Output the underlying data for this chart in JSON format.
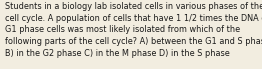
{
  "lines": [
    "Students in a biology lab isolated cells in various phases of the",
    "cell cycle. A population of cells that have 1 1/2 times the DNA of",
    "G1 phase cells was most likely isolated from which of the",
    "following parts of the cell cycle? A) between the G1 and S phases",
    "B) in the G2 phase C) in the M phase D) in the S phase"
  ],
  "background_color": "#f2ede0",
  "text_color": "#1a1a1a",
  "font_size": 5.85,
  "fig_width": 2.62,
  "fig_height": 0.69,
  "dpi": 100
}
